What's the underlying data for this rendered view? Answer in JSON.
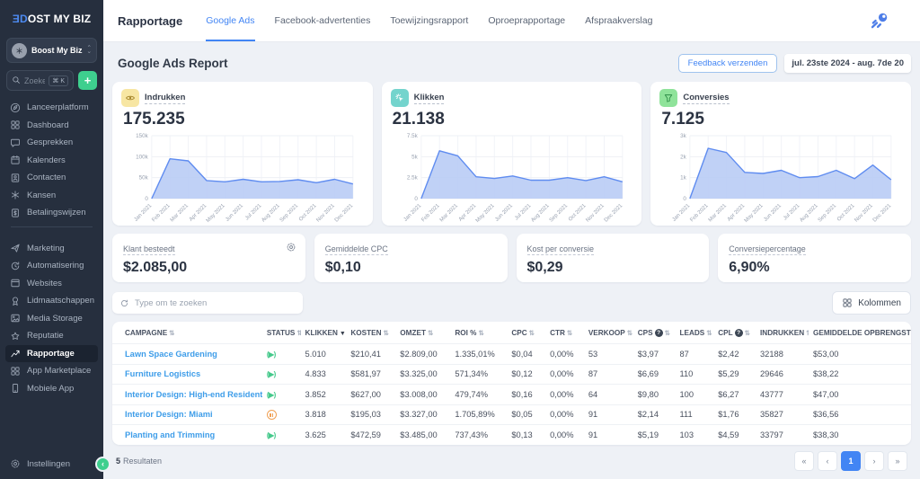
{
  "sidebar": {
    "logo_prefix": "ƎD",
    "logo_rest": "OST MY BIZ",
    "workspace_name": "Boost My Biz",
    "search_placeholder": "Zoeken",
    "search_shortcut": "⌘ K",
    "add_label": "+",
    "nav_primary": [
      {
        "label": "Lanceerplatform",
        "icon": "launch"
      },
      {
        "label": "Dashboard",
        "icon": "dashboard"
      },
      {
        "label": "Gesprekken",
        "icon": "chat"
      },
      {
        "label": "Kalenders",
        "icon": "calendar"
      },
      {
        "label": "Contacten",
        "icon": "contacts"
      },
      {
        "label": "Kansen",
        "icon": "opportunities"
      },
      {
        "label": "Betalingswijzen",
        "icon": "payments"
      }
    ],
    "nav_secondary": [
      {
        "label": "Marketing",
        "icon": "marketing"
      },
      {
        "label": "Automatisering",
        "icon": "automation"
      },
      {
        "label": "Websites",
        "icon": "websites"
      },
      {
        "label": "Lidmaatschappen",
        "icon": "memberships"
      },
      {
        "label": "Media Storage",
        "icon": "media"
      },
      {
        "label": "Reputatie",
        "icon": "reputation"
      },
      {
        "label": "Rapportage",
        "icon": "reports",
        "active": true
      },
      {
        "label": "App Marketplace",
        "icon": "marketplace"
      },
      {
        "label": "Mobiele App",
        "icon": "mobile"
      }
    ],
    "settings_label": "Instellingen",
    "collapse_glyph": "‹"
  },
  "topbar": {
    "title": "Rapportage",
    "tabs": [
      {
        "label": "Google Ads",
        "active": true
      },
      {
        "label": "Facebook-advertenties"
      },
      {
        "label": "Toewijzingsrapport"
      },
      {
        "label": "Oproeprapportage"
      },
      {
        "label": "Afspraakverslag"
      }
    ]
  },
  "report": {
    "title": "Google Ads Report",
    "feedback_label": "Feedback verzenden",
    "date_range": "jul. 23ste 2024 - aug. 7de 20"
  },
  "chart_data": [
    {
      "type": "area",
      "title": "Indrukken",
      "total": "175.235",
      "icon": "eye",
      "icon_bg": "#f7e6a3",
      "icon_color": "#a8882e",
      "categories": [
        "Jan 2021",
        "Feb 2021",
        "Mar 2021",
        "Apr 2021",
        "May 2021",
        "Jun 2021",
        "Jul 2021",
        "Aug 2021",
        "Sep 2021",
        "Oct 2021",
        "Nov 2021",
        "Dec 2021"
      ],
      "values": [
        0,
        95000,
        90000,
        43000,
        40000,
        46000,
        40000,
        41000,
        45000,
        38000,
        46000,
        35000
      ],
      "ylim": [
        0,
        150000
      ],
      "yticks": [
        {
          "v": 0,
          "label": "0"
        },
        {
          "v": 50000,
          "label": "50k"
        },
        {
          "v": 100000,
          "label": "100k"
        },
        {
          "v": 150000,
          "label": "150k"
        }
      ],
      "line_color": "#5f8cf0",
      "fill_color": "#b7cbf5"
    },
    {
      "type": "area",
      "title": "Klikken",
      "total": "21.138",
      "icon": "click",
      "icon_bg": "#74d4cd",
      "icon_color": "#ffffff",
      "categories": [
        "Jan 2021",
        "Feb 2021",
        "Mar 2021",
        "Apr 2021",
        "May 2021",
        "Jun 2021",
        "Jul 2021",
        "Aug 2021",
        "Sep 2021",
        "Oct 2021",
        "Nov 2021",
        "Dec 2021"
      ],
      "values": [
        0,
        5700,
        5100,
        2600,
        2400,
        2700,
        2200,
        2200,
        2500,
        2150,
        2600,
        2000
      ],
      "ylim": [
        0,
        7500
      ],
      "yticks": [
        {
          "v": 0,
          "label": "0"
        },
        {
          "v": 2500,
          "label": "2.5k"
        },
        {
          "v": 5000,
          "label": "5k"
        },
        {
          "v": 7500,
          "label": "7.5k"
        }
      ],
      "line_color": "#5f8cf0",
      "fill_color": "#b7cbf5"
    },
    {
      "type": "area",
      "title": "Conversies",
      "total": "7.125",
      "icon": "funnel",
      "icon_bg": "#8fe39a",
      "icon_color": "#2f8e48",
      "categories": [
        "Jan 2021",
        "Feb 2021",
        "Mar 2021",
        "Apr 2021",
        "May 2021",
        "Jun 2021",
        "Jul 2021",
        "Aug 2021",
        "Sep 2021",
        "Oct 2021",
        "Nov 2021",
        "Dec 2021"
      ],
      "values": [
        0,
        2400,
        2200,
        1250,
        1200,
        1350,
        1000,
        1050,
        1350,
        950,
        1600,
        900
      ],
      "ylim": [
        0,
        3000
      ],
      "yticks": [
        {
          "v": 0,
          "label": "0"
        },
        {
          "v": 1000,
          "label": "1k"
        },
        {
          "v": 2000,
          "label": "2k"
        },
        {
          "v": 3000,
          "label": "3k"
        }
      ],
      "line_color": "#5f8cf0",
      "fill_color": "#b7cbf5"
    }
  ],
  "stat_cards": [
    {
      "label": "Klant besteedt",
      "value": "$2.085,00",
      "gear": true
    },
    {
      "label": "Gemiddelde CPC",
      "value": "$0,10"
    },
    {
      "label": "Kost per conversie",
      "value": "$0,29"
    },
    {
      "label": "Conversiepercentage",
      "value": "6,90%"
    }
  ],
  "table": {
    "search_placeholder": "Type om te zoeken",
    "columns_label": "Kolommen",
    "headers": [
      {
        "label": "CAMPAGNE",
        "sort": "both"
      },
      {
        "label": "STATUS",
        "sort": "both"
      },
      {
        "label": "KLIKKEN",
        "sort": "desc"
      },
      {
        "label": "KOSTEN",
        "sort": "both"
      },
      {
        "label": "OMZET",
        "sort": "both"
      },
      {
        "label": "ROI %",
        "sort": "both"
      },
      {
        "label": "CPC",
        "sort": "both"
      },
      {
        "label": "CTR",
        "sort": "both"
      },
      {
        "label": "VERKOOP",
        "sort": "both"
      },
      {
        "label": "CPS",
        "sort": "both",
        "info": true
      },
      {
        "label": "LEADS",
        "sort": "both"
      },
      {
        "label": "CPL",
        "sort": "both",
        "info": true
      },
      {
        "label": "INDRUKKEN",
        "sort": "both"
      },
      {
        "label": "GEMIDDELDE OPBRENGST",
        "sort": "both"
      }
    ],
    "rows": [
      {
        "campaign": "Lawn Space Gardening",
        "status": "active",
        "cells": [
          "5.010",
          "$210,41",
          "$2.809,00",
          "1.335,01%",
          "$0,04",
          "0,00%",
          "53",
          "$3,97",
          "87",
          "$2,42",
          "32188",
          "$53,00"
        ]
      },
      {
        "campaign": "Furniture Logistics",
        "status": "active",
        "cells": [
          "4.833",
          "$581,97",
          "$3.325,00",
          "571,34%",
          "$0,12",
          "0,00%",
          "87",
          "$6,69",
          "110",
          "$5,29",
          "29646",
          "$38,22"
        ]
      },
      {
        "campaign": "Interior Design: High-end Residential",
        "status": "active",
        "cells": [
          "3.852",
          "$627,00",
          "$3.008,00",
          "479,74%",
          "$0,16",
          "0,00%",
          "64",
          "$9,80",
          "100",
          "$6,27",
          "43777",
          "$47,00"
        ]
      },
      {
        "campaign": "Interior Design: Miami",
        "status": "paused",
        "cells": [
          "3.818",
          "$195,03",
          "$3.327,00",
          "1.705,89%",
          "$0,05",
          "0,00%",
          "91",
          "$2,14",
          "111",
          "$1,76",
          "35827",
          "$36,56"
        ]
      },
      {
        "campaign": "Planting and Trimming",
        "status": "active",
        "cells": [
          "3.625",
          "$472,59",
          "$3.485,00",
          "737,43%",
          "$0,13",
          "0,00%",
          "91",
          "$5,19",
          "103",
          "$4,59",
          "33797",
          "$38,30"
        ]
      }
    ],
    "results_count": "5",
    "results_label": "Resultaten",
    "pagination": [
      "«",
      "‹",
      "1",
      "›",
      "»"
    ],
    "pagination_active_index": 2
  }
}
